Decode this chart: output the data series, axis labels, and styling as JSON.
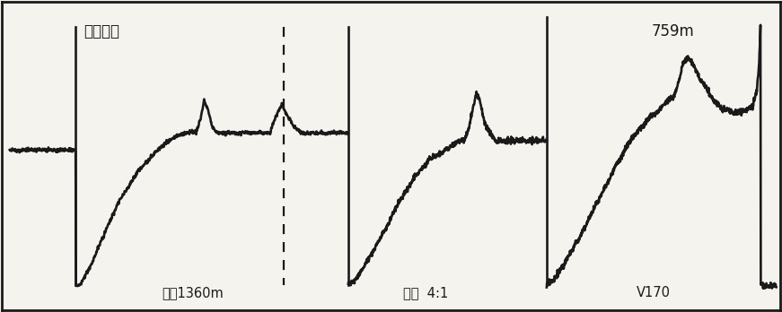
{
  "bg_color": "#f5f3ee",
  "line_color": "#1a1a1a",
  "label_top_left": "脉冲电流",
  "label_bottom_left": "范围1360m",
  "label_bottom_mid": "比例  4:1",
  "label_bottom_right": "V170",
  "label_top_right": "759m",
  "figsize": [
    8.71,
    3.48
  ],
  "dpi": 100,
  "xlim": [
    0,
    100
  ],
  "ylim": [
    0,
    100
  ]
}
